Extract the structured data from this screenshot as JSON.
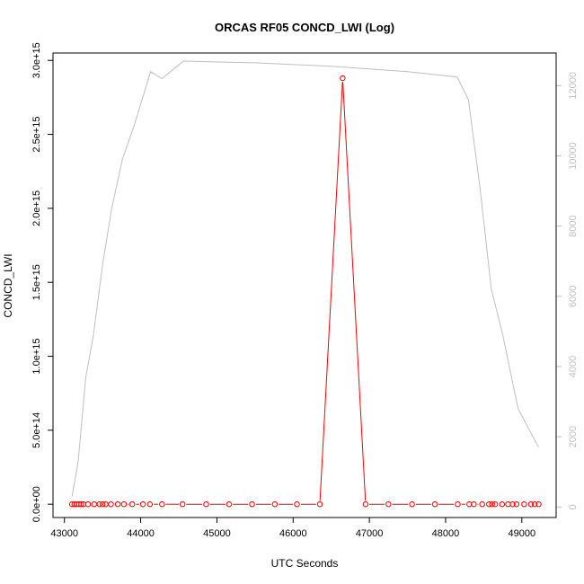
{
  "chart_data": {
    "type": "line",
    "title": "ORCAS RF05 CONCD_LWI (Log)",
    "xlabel": "UTC Seconds",
    "ylabel": "CONCD_LWI",
    "xlim": [
      42850,
      49450
    ],
    "ylim": [
      -90000000000000.0,
      3050000000000000.0
    ],
    "y2lim": [
      -300,
      12930
    ],
    "xticks": [
      43000,
      44000,
      45000,
      46000,
      47000,
      48000,
      49000
    ],
    "xtick_labels": [
      "43000",
      "44000",
      "45000",
      "46000",
      "47000",
      "48000",
      "49000"
    ],
    "yticks": [
      0,
      500000000000000.0,
      1000000000000000.0,
      1500000000000000.0,
      2000000000000000.0,
      2500000000000000.0,
      3000000000000000.0
    ],
    "ytick_labels": [
      "0.0e+00",
      "5.0e+14",
      "1.0e+15",
      "1.5e+15",
      "2.0e+15",
      "2.5e+15",
      "3.0e+15"
    ],
    "y2ticks": [
      0,
      2000,
      4000,
      6000,
      8000,
      10000,
      12000
    ],
    "y2tick_labels": [
      "0",
      "2000",
      "4000",
      "6000",
      "8000",
      "10000",
      "12000"
    ],
    "colors": {
      "series": "#ff0000",
      "altitude": "#bebebe",
      "frame": "#000000"
    },
    "series": [
      {
        "axis": "left",
        "style": "line-with-open-circles",
        "x": [
          43100,
          43130,
          43160,
          43190,
          43220,
          43250,
          43310,
          43390,
          43460,
          43500,
          43540,
          43610,
          43700,
          43780,
          43890,
          44030,
          44120,
          44280,
          44550,
          44860,
          45160,
          45460,
          45760,
          46050,
          46350,
          46650,
          46950,
          47250,
          47560,
          47860,
          48160,
          48310,
          48370,
          48480,
          48570,
          48610,
          48650,
          48740,
          48820,
          48880,
          48930,
          49030,
          49120,
          49170,
          49220
        ],
        "y": [
          0,
          0,
          0,
          0,
          0,
          0,
          0,
          0,
          0,
          0,
          0,
          0,
          0,
          0,
          0,
          0,
          0,
          0,
          0,
          0,
          0,
          0,
          0,
          0,
          0,
          2880000000000000.0,
          0,
          0,
          0,
          0,
          0,
          0,
          0,
          0,
          0,
          0,
          0,
          0,
          0,
          0,
          0,
          0,
          0,
          0,
          0
        ]
      },
      {
        "axis": "right",
        "style": "line",
        "x": [
          43100,
          43180,
          43280,
          43380,
          43500,
          43620,
          43760,
          43920,
          44130,
          44280,
          44560,
          45500,
          46500,
          47500,
          48150,
          48300,
          48450,
          48600,
          48750,
          48950,
          49220
        ],
        "y": [
          300,
          1300,
          3700,
          4900,
          6900,
          8500,
          9900,
          10900,
          12400,
          12200,
          12700,
          12650,
          12550,
          12400,
          12250,
          11600,
          9100,
          6200,
          4900,
          2800,
          1700
        ]
      }
    ]
  }
}
